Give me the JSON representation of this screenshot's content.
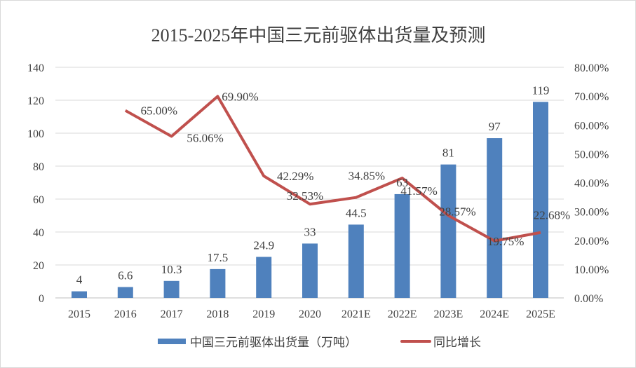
{
  "chart_data": {
    "type": "bar+line",
    "title": "2015-2025年中国三元前驱体出货量及预测",
    "categories": [
      "2015",
      "2016",
      "2017",
      "2018",
      "2019",
      "2020",
      "2021E",
      "2022E",
      "2023E",
      "2024E",
      "2025E"
    ],
    "series": [
      {
        "name": "中国三元前驱体出货量（万吨）",
        "type": "bar",
        "axis": "left",
        "color": "#4f81bd",
        "values": [
          4,
          6.6,
          10.3,
          17.5,
          24.9,
          33,
          44.5,
          63,
          81,
          97,
          119
        ],
        "labels": [
          "4",
          "6.6",
          "10.3",
          "17.5",
          "24.9",
          "33",
          "44.5",
          "63",
          "81",
          "97",
          "119"
        ]
      },
      {
        "name": "同比增长",
        "type": "line",
        "axis": "right",
        "color": "#c0504d",
        "values": [
          null,
          65.0,
          56.06,
          69.9,
          42.29,
          32.53,
          34.85,
          41.57,
          28.57,
          19.75,
          22.68
        ],
        "labels": [
          null,
          "65.00%",
          "56.06%",
          "69.90%",
          "42.29%",
          "32.53%",
          "34.85%",
          "41.57%",
          "28.57%",
          "19.75%",
          "22.68%"
        ]
      }
    ],
    "left_axis": {
      "range": [
        0,
        140
      ],
      "ticks": [
        "0",
        "20",
        "40",
        "60",
        "80",
        "100",
        "120",
        "140"
      ]
    },
    "right_axis": {
      "range": [
        0,
        80
      ],
      "ticks": [
        "0.00%",
        "10.00%",
        "20.00%",
        "30.00%",
        "40.00%",
        "50.00%",
        "60.00%",
        "70.00%",
        "80.00%"
      ]
    },
    "grid": true,
    "legend": "bottom"
  }
}
